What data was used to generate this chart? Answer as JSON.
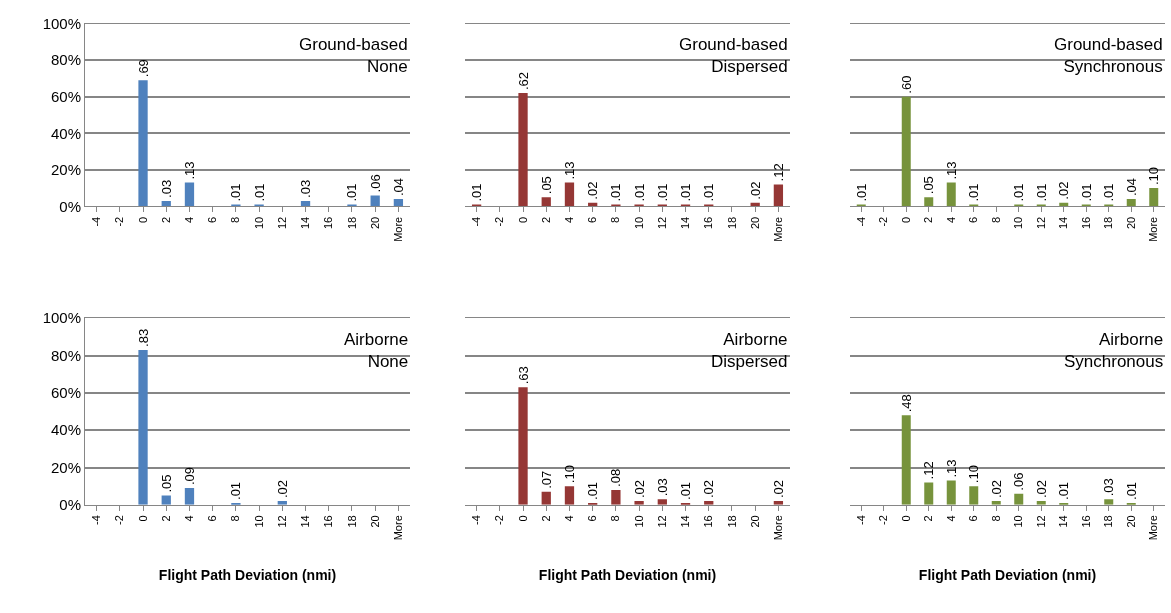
{
  "chart_data": [
    {
      "type": "bar",
      "categories": [
        "-4",
        "-2",
        "0",
        "2",
        "4",
        "6",
        "8",
        "10",
        "12",
        "14",
        "16",
        "18",
        "20",
        "More"
      ],
      "values": [
        0,
        0,
        0.69,
        0.03,
        0.13,
        0,
        0.01,
        0.01,
        0,
        0.03,
        0,
        0.01,
        0.06,
        0.04
      ],
      "value_labels": [
        null,
        null,
        ".69",
        ".03",
        ".13",
        null,
        ".01",
        ".01",
        null,
        ".03",
        null,
        ".01",
        ".06",
        ".04"
      ],
      "color": "#4f81bd",
      "ylim": [
        0,
        1
      ],
      "yticks": [
        {
          "value": 0,
          "label": "0%"
        },
        {
          "value": 0.2,
          "label": "20%"
        },
        {
          "value": 0.4,
          "label": "40%"
        },
        {
          "value": 0.6,
          "label": "60%"
        },
        {
          "value": 0.8,
          "label": "80%"
        },
        {
          "value": 1,
          "label": "100%"
        }
      ],
      "grid": "y",
      "annotations": [
        "Ground-based\nNone"
      ]
    },
    {
      "type": "bar",
      "categories": [
        "-4",
        "-2",
        "0",
        "2",
        "4",
        "6",
        "8",
        "10",
        "12",
        "14",
        "16",
        "18",
        "20",
        "More"
      ],
      "values": [
        0.01,
        0,
        0.62,
        0.05,
        0.13,
        0.02,
        0.01,
        0.01,
        0.01,
        0.01,
        0.01,
        0,
        0.02,
        0.12
      ],
      "value_labels": [
        ".01",
        null,
        ".62",
        ".05",
        ".13",
        ".02",
        ".01",
        ".01",
        ".01",
        ".01",
        ".01",
        null,
        ".02",
        ".12"
      ],
      "color": "#953735",
      "ylim": [
        0,
        1
      ],
      "yticks": [
        {
          "value": 0,
          "label": null
        },
        {
          "value": 0.2,
          "label": null
        },
        {
          "value": 0.4,
          "label": null
        },
        {
          "value": 0.6,
          "label": null
        },
        {
          "value": 0.8,
          "label": null
        },
        {
          "value": 1,
          "label": null
        }
      ],
      "grid": "y",
      "tick_labels": "x",
      "annotations": [
        "Ground-based\nDispersed"
      ]
    },
    {
      "type": "bar",
      "categories": [
        "-4",
        "-2",
        "0",
        "2",
        "4",
        "6",
        "8",
        "10",
        "12",
        "14",
        "16",
        "18",
        "20",
        "More"
      ],
      "values": [
        0.01,
        0,
        0.6,
        0.05,
        0.13,
        0.01,
        0,
        0.01,
        0.01,
        0.02,
        0.01,
        0.01,
        0.04,
        0.1
      ],
      "value_labels": [
        ".01",
        null,
        ".60",
        ".05",
        ".13",
        ".01",
        null,
        ".01",
        ".01",
        ".02",
        ".01",
        ".01",
        ".04",
        ".10"
      ],
      "color": "#77933c",
      "ylim": [
        0,
        1
      ],
      "yticks": [
        {
          "value": 0,
          "label": null
        },
        {
          "value": 0.2,
          "label": null
        },
        {
          "value": 0.4,
          "label": null
        },
        {
          "value": 0.6,
          "label": null
        },
        {
          "value": 0.8,
          "label": null
        },
        {
          "value": 1,
          "label": null
        }
      ],
      "grid": "y",
      "tick_labels": "x",
      "annotations": [
        "Ground-based\nSynchronous"
      ]
    },
    {
      "type": "bar",
      "categories": [
        "-4",
        "-2",
        "0",
        "2",
        "4",
        "6",
        "8",
        "10",
        "12",
        "14",
        "16",
        "18",
        "20",
        "More"
      ],
      "values": [
        0,
        0,
        0.83,
        0.05,
        0.09,
        0,
        0.01,
        0,
        0.02,
        0,
        0,
        0,
        0,
        0
      ],
      "value_labels": [
        null,
        null,
        ".83",
        ".05",
        ".09",
        null,
        ".01",
        null,
        ".02",
        null,
        null,
        null,
        null,
        null
      ],
      "color": "#4f81bd",
      "ylim": [
        0,
        1
      ],
      "yticks": [
        {
          "value": 0,
          "label": "0%"
        },
        {
          "value": 0.2,
          "label": "20%"
        },
        {
          "value": 0.4,
          "label": "40%"
        },
        {
          "value": 0.6,
          "label": "60%"
        },
        {
          "value": 0.8,
          "label": "80%"
        },
        {
          "value": 1,
          "label": "100%"
        }
      ],
      "grid": "y",
      "xlabel": "Flight Path Deviation (nmi)",
      "annotations": [
        "Airborne\nNone"
      ]
    },
    {
      "type": "bar",
      "categories": [
        "-4",
        "-2",
        "0",
        "2",
        "4",
        "6",
        "8",
        "10",
        "12",
        "14",
        "16",
        "18",
        "20",
        "More"
      ],
      "values": [
        0,
        0,
        0.63,
        0.07,
        0.1,
        0.01,
        0.08,
        0.02,
        0.03,
        0.01,
        0.02,
        0,
        0,
        0.02
      ],
      "value_labels": [
        null,
        null,
        ".63",
        ".07",
        ".10",
        ".01",
        ".08",
        ".02",
        ".03",
        ".01",
        ".02",
        null,
        null,
        ".02"
      ],
      "color": "#953735",
      "ylim": [
        0,
        1
      ],
      "yticks": [
        {
          "value": 0,
          "label": null
        },
        {
          "value": 0.2,
          "label": null
        },
        {
          "value": 0.4,
          "label": null
        },
        {
          "value": 0.6,
          "label": null
        },
        {
          "value": 0.8,
          "label": null
        },
        {
          "value": 1,
          "label": null
        }
      ],
      "grid": "y",
      "tick_labels": "x",
      "xlabel": "Flight Path Deviation (nmi)",
      "annotations": [
        "Airborne\nDispersed"
      ]
    },
    {
      "type": "bar",
      "categories": [
        "-4",
        "-2",
        "0",
        "2",
        "4",
        "6",
        "8",
        "10",
        "12",
        "14",
        "16",
        "18",
        "20",
        "More"
      ],
      "values": [
        0,
        0,
        0.48,
        0.12,
        0.13,
        0.1,
        0.02,
        0.06,
        0.02,
        0.01,
        0,
        0.03,
        0.01,
        0
      ],
      "value_labels": [
        null,
        null,
        ".48",
        ".12",
        ".13",
        ".10",
        ".02",
        ".06",
        ".02",
        ".01",
        null,
        ".03",
        ".01",
        null
      ],
      "color": "#77933c",
      "ylim": [
        0,
        1
      ],
      "yticks": [
        {
          "value": 0,
          "label": null
        },
        {
          "value": 0.2,
          "label": null
        },
        {
          "value": 0.4,
          "label": null
        },
        {
          "value": 0.6,
          "label": null
        },
        {
          "value": 0.8,
          "label": null
        },
        {
          "value": 1,
          "label": null
        }
      ],
      "grid": "y",
      "tick_labels": "x",
      "xlabel": "Flight Path Deviation (nmi)",
      "annotations": [
        "Airborne\nSynchronous"
      ]
    }
  ]
}
